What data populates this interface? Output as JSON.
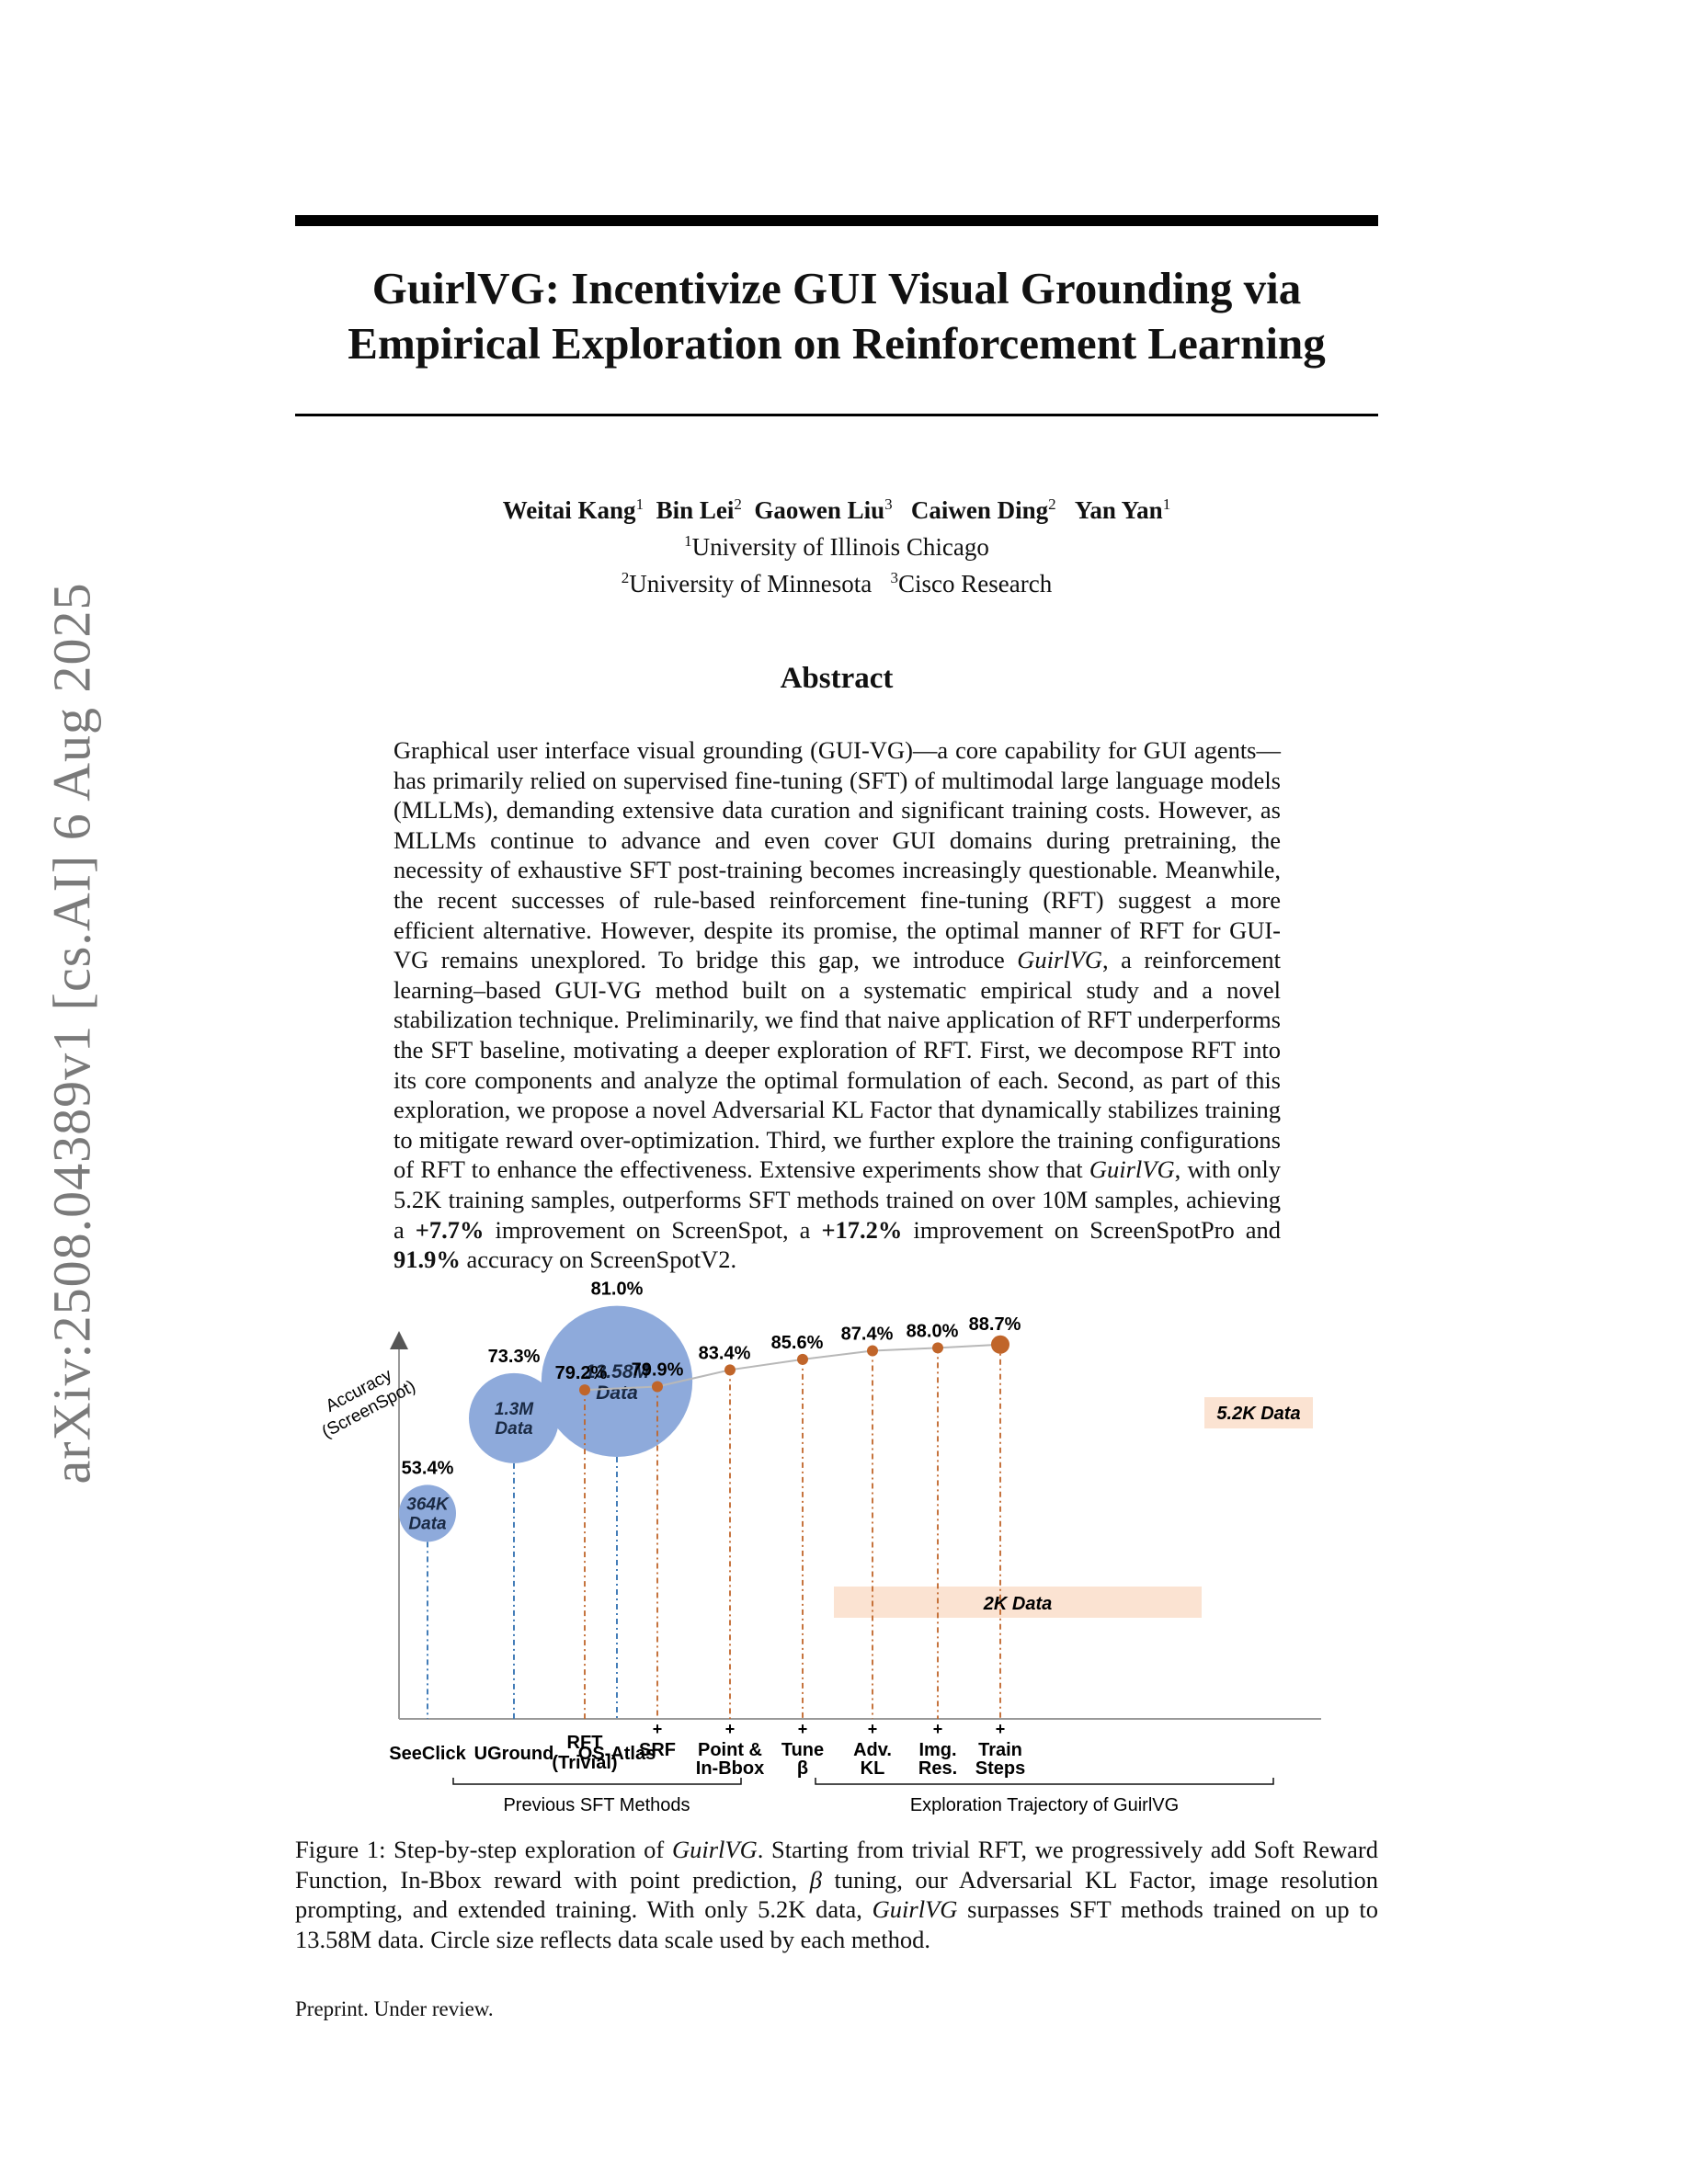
{
  "arxiv_stamp": "arXiv:2508.04389v1  [cs.AI]  6 Aug 2025",
  "title_line1": "GuirlVG: Incentivize GUI Visual Grounding via",
  "title_line2": "Empirical Exploration on Reinforcement Learning",
  "authors": [
    {
      "name": "Weitai Kang",
      "sup": "1"
    },
    {
      "name": "Bin Lei",
      "sup": "2"
    },
    {
      "name": "Gaowen Liu",
      "sup": "3"
    },
    {
      "name": "Caiwen Ding",
      "sup": "2"
    },
    {
      "name": "Yan Yan",
      "sup": "1"
    }
  ],
  "affiliations": {
    "a1_sup": "1",
    "a1": "University of Illinois Chicago",
    "a2_sup": "2",
    "a2": "University of Minnesota",
    "a3_sup": "3",
    "a3": "Cisco Research"
  },
  "abstract_heading": "Abstract",
  "abstract": {
    "p1": "Graphical user interface visual grounding (GUI-VG)—a core capability for GUI agents—has primarily relied on supervised fine-tuning (SFT) of multimodal large language models (MLLMs), demanding extensive data curation and significant training costs. However, as MLLMs continue to advance and even cover GUI domains during pretraining, the necessity of exhaustive SFT post-training becomes increasingly questionable. Meanwhile, the recent successes of rule-based reinforcement fine-tuning (RFT) suggest a more efficient alternative. However, despite its promise, the optimal manner of RFT for GUI-VG remains unexplored. To bridge this gap, we introduce ",
    "name1": "GuirlVG",
    "p2": ", a reinforcement learning–based GUI-VG method built on a systematic empirical study and a novel stabilization technique. Preliminarily, we find that naive application of RFT underperforms the SFT baseline, motivating a deeper exploration of RFT. First, we decompose RFT into its core components and analyze the optimal formulation of each. Second, as part of this exploration, we propose a novel Adversarial KL Factor that dynamically stabilizes training to mitigate reward over-optimization. Third, we further explore the training configurations of RFT to enhance the effectiveness. Extensive experiments show that ",
    "name2": "GuirlVG",
    "p3": ", with only 5.2K training samples, outperforms SFT methods trained on over 10M samples, achieving a ",
    "b1": "+7.7%",
    "p4": " improvement on ScreenSpot, a ",
    "b2": "+17.2%",
    "p5": " improvement on ScreenSpotPro and ",
    "b3": "91.9%",
    "p6": " accuracy on ScreenSpotV2."
  },
  "figure": {
    "y_axis_label_1": "Accuracy",
    "y_axis_label_2": "(ScreenSpot)",
    "group1_label": "Previous SFT Methods",
    "group2_label": "Exploration Trajectory of GuirlVG",
    "band_2k": "2K  Data",
    "band_52k": "5.2K Data"
  },
  "chart_data": {
    "type": "scatter",
    "ylabel": "Accuracy (ScreenSpot)",
    "previous_sft_methods": [
      {
        "name": "SeeClick",
        "accuracy_label": "53.4%",
        "accuracy": 53.4,
        "data_line1": "364K",
        "data_line2": "Data",
        "data_size_m": 0.364
      },
      {
        "name": "UGround",
        "accuracy_label": "73.3%",
        "accuracy": 73.3,
        "data_line1": "1.3M",
        "data_line2": "Data",
        "data_size_m": 1.3
      },
      {
        "name": "OS-Atlas",
        "accuracy_label": "81.0%",
        "accuracy": 81.0,
        "data_line1": "13.58M",
        "data_line2": "Data",
        "data_size_m": 13.58
      }
    ],
    "trajectory": [
      {
        "step_line1": "RFT",
        "step_line2": "(Trivial)",
        "plus": false,
        "accuracy_label": "79.2%",
        "accuracy": 79.2
      },
      {
        "step_line1": "SRF",
        "step_line2": "",
        "plus": true,
        "accuracy_label": "79.9%",
        "accuracy": 79.9
      },
      {
        "step_line1": "Point &",
        "step_line2": "In-Bbox",
        "plus": true,
        "accuracy_label": "83.4%",
        "accuracy": 83.4
      },
      {
        "step_line1": "Tune",
        "step_line2": "β",
        "plus": true,
        "accuracy_label": "85.6%",
        "accuracy": 85.6
      },
      {
        "step_line1": "Adv.",
        "step_line2": "KL",
        "plus": true,
        "accuracy_label": "87.4%",
        "accuracy": 87.4
      },
      {
        "step_line1": "Img.",
        "step_line2": "Res.",
        "plus": true,
        "accuracy_label": "88.0%",
        "accuracy": 88.0
      },
      {
        "step_line1": "Train",
        "step_line2": "Steps",
        "plus": true,
        "accuracy_label": "88.7%",
        "accuracy": 88.7
      }
    ],
    "colors": {
      "sft_bubble": "#8eaadb",
      "trajectory_point": "#c0652a",
      "data_band": "#fbe3d2",
      "sft_dashes": "#2f6fb0"
    }
  },
  "caption": {
    "prefix": "Figure 1: Step-by-step exploration of ",
    "name1": "GuirlVG",
    "t1": ". Starting from trivial RFT, we progressively add Soft Reward Function, In-Bbox reward with point prediction, ",
    "beta": "β",
    "t2": " tuning, our Adversarial KL Factor, image resolution prompting, and extended training. With only 5.2K data, ",
    "name2": "GuirlVG",
    "t3": " surpasses SFT methods trained on up to 13.58M data. Circle size reflects data scale used by each method."
  },
  "footer": "Preprint. Under review."
}
